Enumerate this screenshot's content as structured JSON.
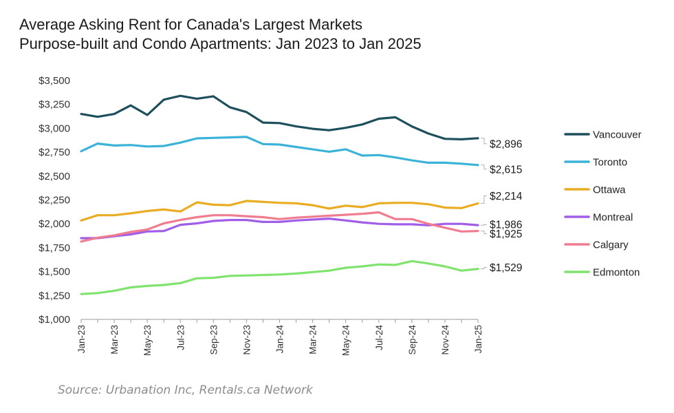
{
  "title": {
    "line1": "Average Asking Rent for Canada's Largest Markets",
    "line2": "Purpose-built and Condo Apartments: Jan 2023 to Jan 2025"
  },
  "source": "Source: Urbanation Inc, Rentals.ca Network",
  "chart_data": {
    "type": "line",
    "title": "Average Asking Rent for Canada's Largest Markets",
    "subtitle": "Purpose-built and Condo Apartments: Jan 2023 to Jan 2025",
    "xlabel": "",
    "ylabel": "",
    "ylim": [
      1000,
      3500
    ],
    "yticks": [
      1000,
      1250,
      1500,
      1750,
      2000,
      2250,
      2500,
      2750,
      3000,
      3250,
      3500
    ],
    "ytick_labels": [
      "$1,000",
      "$1,250",
      "$1,500",
      "$1,750",
      "$2,000",
      "$2,250",
      "$2,500",
      "$2,750",
      "$3,000",
      "$3,250",
      "$3,500"
    ],
    "x": [
      "Jan-23",
      "Feb-23",
      "Mar-23",
      "Apr-23",
      "May-23",
      "Jun-23",
      "Jul-23",
      "Aug-23",
      "Sep-23",
      "Oct-23",
      "Nov-23",
      "Dec-23",
      "Jan-24",
      "Feb-24",
      "Mar-24",
      "Apr-24",
      "May-24",
      "Jun-24",
      "Jul-24",
      "Aug-24",
      "Sep-24",
      "Oct-24",
      "Nov-24",
      "Dec-24",
      "Jan-25"
    ],
    "xtick_labels": [
      "Jan-23",
      "Mar-23",
      "May-23",
      "Jul-23",
      "Sep-23",
      "Nov-23",
      "Jan-24",
      "Mar-24",
      "May-24",
      "Jul-24",
      "Sep-24",
      "Nov-24",
      "Jan-25"
    ],
    "grid": false,
    "legend_position": "right",
    "series": [
      {
        "name": "Vancouver",
        "color": "#1d4f5c",
        "end_label": "$2,896",
        "values": [
          3150,
          3120,
          3150,
          3240,
          3140,
          3300,
          3340,
          3310,
          3335,
          3220,
          3170,
          3060,
          3055,
          3020,
          2995,
          2980,
          3005,
          3040,
          3100,
          3115,
          3020,
          2945,
          2890,
          2885,
          2896
        ]
      },
      {
        "name": "Toronto",
        "color": "#3bb3d8",
        "end_label": "$2,615",
        "values": [
          2760,
          2840,
          2820,
          2825,
          2810,
          2815,
          2850,
          2895,
          2900,
          2905,
          2910,
          2835,
          2830,
          2805,
          2780,
          2755,
          2780,
          2715,
          2720,
          2695,
          2665,
          2640,
          2640,
          2630,
          2615
        ]
      },
      {
        "name": "Ottawa",
        "color": "#eaac22",
        "end_label": "$2,214",
        "values": [
          2035,
          2090,
          2090,
          2110,
          2135,
          2150,
          2130,
          2225,
          2200,
          2195,
          2240,
          2230,
          2220,
          2215,
          2195,
          2160,
          2190,
          2175,
          2215,
          2220,
          2220,
          2205,
          2170,
          2165,
          2214
        ]
      },
      {
        "name": "Montreal",
        "color": "#a05ee8",
        "end_label": "$1,986",
        "values": [
          1850,
          1850,
          1870,
          1890,
          1920,
          1925,
          1990,
          2005,
          2030,
          2040,
          2040,
          2020,
          2020,
          2035,
          2045,
          2055,
          2035,
          2015,
          2000,
          1995,
          1995,
          1985,
          2000,
          2000,
          1986
        ]
      },
      {
        "name": "Calgary",
        "color": "#f07c90",
        "end_label": "$1,925",
        "values": [
          1815,
          1855,
          1880,
          1915,
          1940,
          2005,
          2040,
          2070,
          2090,
          2090,
          2080,
          2070,
          2050,
          2065,
          2075,
          2085,
          2095,
          2105,
          2120,
          2050,
          2050,
          2000,
          1960,
          1920,
          1925
        ]
      },
      {
        "name": "Edmonton",
        "color": "#7fe36d",
        "end_label": "$1,529",
        "values": [
          1265,
          1275,
          1300,
          1335,
          1350,
          1360,
          1380,
          1430,
          1435,
          1455,
          1460,
          1465,
          1470,
          1480,
          1495,
          1510,
          1540,
          1555,
          1575,
          1570,
          1610,
          1585,
          1555,
          1510,
          1529
        ]
      }
    ]
  }
}
